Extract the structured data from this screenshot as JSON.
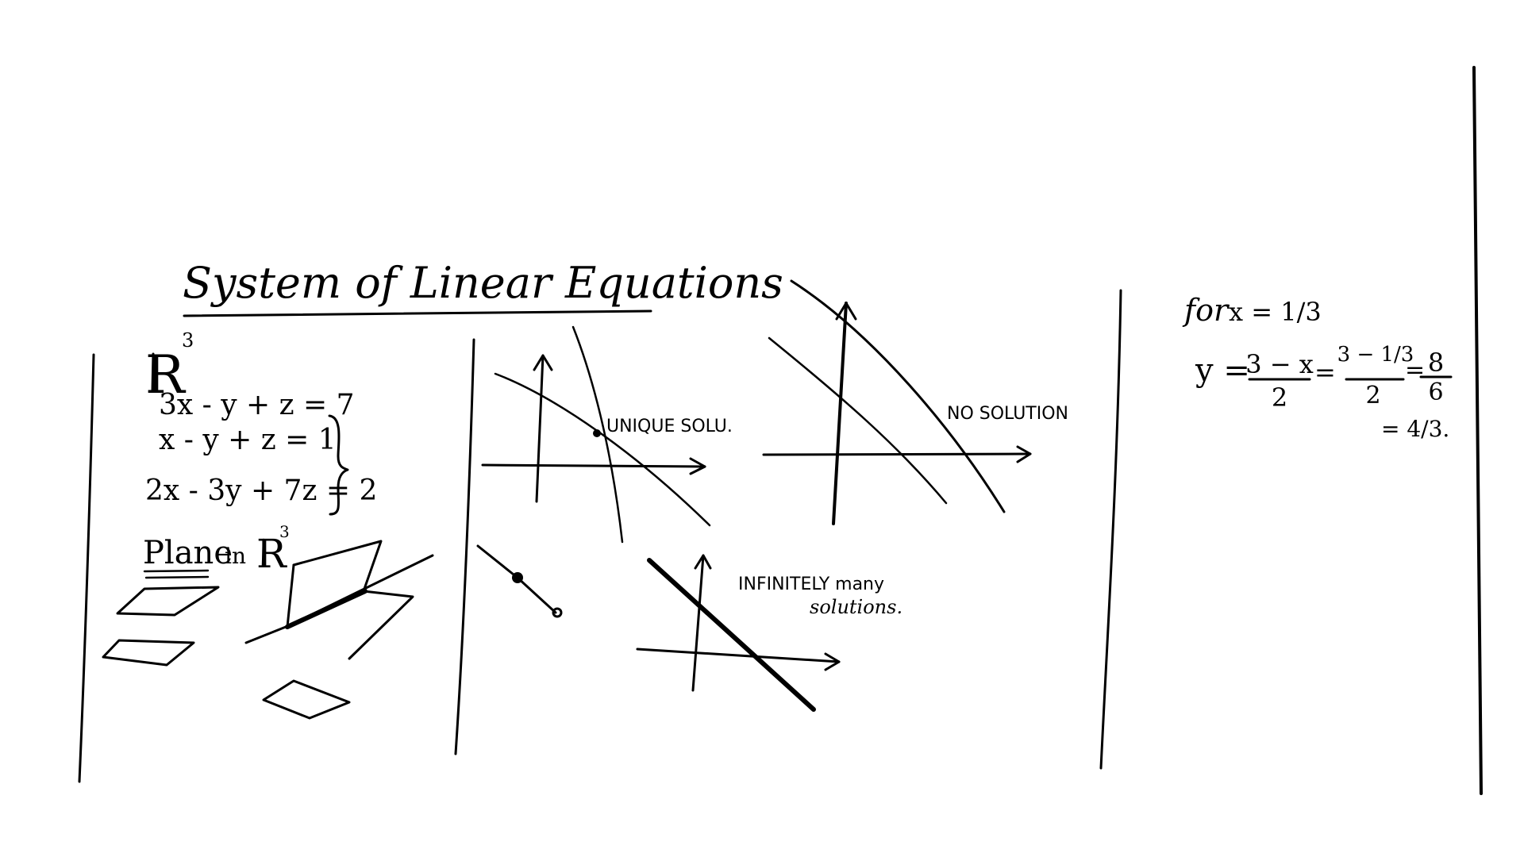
{
  "title": "System of Linear Equations",
  "left_panel": {
    "space_label": "R",
    "space_exponent": "3",
    "equations": [
      "3x - y + z = 7",
      "x - y + z = 1",
      "2x - 3y + 7z = 2"
    ],
    "plane_label": "Plane",
    "plane_in": "in",
    "plane_space": "R",
    "plane_exponent": "3"
  },
  "middle_panel": {
    "unique_label": "UNIQUE SOLU.",
    "none_label": "NO SOLUTION",
    "infinite_label_1": "INFINITELY many",
    "infinite_label_2": "solutions."
  },
  "right_panel": {
    "condition_prefix": "for",
    "condition": "x = 1/3",
    "y_eq": "y =",
    "frac1_num": "3 − x",
    "frac1_den": "2",
    "eq1": "=",
    "frac2_num": "3 − 1/3",
    "frac2_den": "2",
    "eq2": "=",
    "frac3_num": "8",
    "frac3_den": "6",
    "result": "= 4/3."
  }
}
